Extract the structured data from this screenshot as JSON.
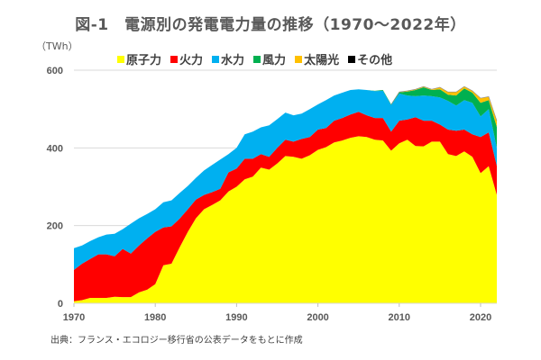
{
  "chart_data": {
    "type": "area",
    "stacked": true,
    "title": "図-1　電源別の発電電力量の推移（1970〜2022年）",
    "ylabel": "（TWh）",
    "xlabel": "",
    "ylim": [
      0,
      600
    ],
    "yticks": [
      0,
      200,
      400,
      600
    ],
    "xticks": [
      1970,
      1980,
      1990,
      2000,
      2010,
      2020
    ],
    "xlim": [
      1970,
      2022
    ],
    "grid": true,
    "legend_position": "top",
    "source_note": "出典：フランス・エコロジー移行省の公表データをもとに作成",
    "x": [
      1970,
      1971,
      1972,
      1973,
      1974,
      1975,
      1976,
      1977,
      1978,
      1979,
      1980,
      1981,
      1982,
      1983,
      1984,
      1985,
      1986,
      1987,
      1988,
      1989,
      1990,
      1991,
      1992,
      1993,
      1994,
      1995,
      1996,
      1997,
      1998,
      1999,
      2000,
      2001,
      2002,
      2003,
      2004,
      2005,
      2006,
      2007,
      2008,
      2009,
      2010,
      2011,
      2012,
      2013,
      2014,
      2015,
      2016,
      2017,
      2018,
      2019,
      2020,
      2021,
      2022
    ],
    "series": [
      {
        "name": "原子力",
        "color": "#FFFF00",
        "values": [
          5,
          8,
          14,
          14,
          14,
          17,
          16,
          16,
          28,
          35,
          49,
          98,
          102,
          144,
          184,
          219,
          242,
          253,
          265,
          288,
          300,
          319,
          326,
          349,
          344,
          360,
          379,
          377,
          372,
          381,
          395,
          402,
          414,
          419,
          426,
          430,
          428,
          421,
          419,
          393,
          412,
          421,
          405,
          404,
          416,
          416,
          384,
          379,
          391,
          377,
          335,
          353,
          279
        ]
      },
      {
        "name": "火力",
        "color": "#FF0000",
        "values": [
          81,
          94,
          100,
          112,
          112,
          104,
          124,
          112,
          121,
          132,
          135,
          97,
          96,
          74,
          58,
          48,
          37,
          33,
          30,
          49,
          47,
          53,
          46,
          35,
          33,
          40,
          42,
          39,
          51,
          47,
          52,
          49,
          56,
          58,
          60,
          63,
          56,
          56,
          58,
          49,
          58,
          52,
          74,
          66,
          54,
          44,
          63,
          65,
          56,
          58,
          93,
          87,
          75
        ]
      },
      {
        "name": "水力",
        "color": "#00B0F0",
        "values": [
          56,
          47,
          46,
          44,
          51,
          58,
          51,
          77,
          70,
          63,
          58,
          65,
          67,
          66,
          60,
          56,
          63,
          70,
          75,
          47,
          53,
          63,
          70,
          69,
          81,
          74,
          70,
          68,
          65,
          72,
          65,
          72,
          65,
          65,
          63,
          58,
          65,
          69,
          70,
          68,
          70,
          62,
          54,
          65,
          63,
          70,
          74,
          65,
          76,
          81,
          53,
          60,
          46
        ]
      },
      {
        "name": "風力",
        "color": "#00B050",
        "values": [
          0,
          0,
          0,
          0,
          0,
          0,
          0,
          0,
          0,
          0,
          0,
          0,
          0,
          0,
          0,
          0,
          0,
          0,
          0,
          0,
          0,
          0,
          0,
          0,
          0,
          0,
          0,
          0,
          0,
          0,
          0,
          0,
          0,
          0,
          0,
          0,
          0,
          1,
          2,
          2,
          3,
          10,
          16,
          21,
          16,
          21,
          16,
          26,
          30,
          26,
          35,
          23,
          54
        ]
      },
      {
        "name": "太陽光",
        "color": "#FFC000",
        "values": [
          0,
          0,
          0,
          0,
          0,
          0,
          0,
          0,
          0,
          0,
          0,
          0,
          0,
          0,
          0,
          0,
          0,
          0,
          0,
          0,
          0,
          0,
          0,
          0,
          0,
          0,
          0,
          0,
          0,
          0,
          0,
          0,
          0,
          0,
          0,
          0,
          0,
          0,
          0,
          0,
          1,
          2,
          2,
          2,
          2,
          5,
          7,
          9,
          5,
          5,
          12,
          9,
          16
        ]
      },
      {
        "name": "その他",
        "color": "#000000",
        "values": [
          0,
          0,
          0,
          0,
          0,
          0,
          0,
          0,
          0,
          0,
          0,
          0,
          0,
          0,
          0,
          0,
          0,
          0,
          0,
          0,
          0,
          0,
          0,
          0,
          0,
          0,
          0,
          0,
          0,
          0,
          0,
          0,
          0,
          0,
          0,
          0,
          0,
          0,
          0,
          0,
          0,
          0,
          0,
          0,
          0,
          0,
          0,
          0,
          0,
          0,
          0,
          0,
          0
        ]
      }
    ]
  }
}
